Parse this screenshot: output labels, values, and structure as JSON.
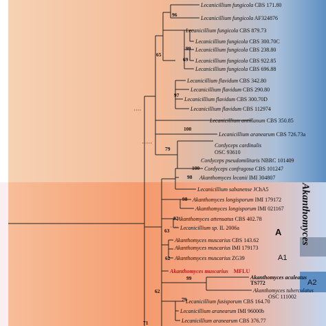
{
  "colors": {
    "left_gradient_start": "#f3c9a6",
    "left_gradient_end": "#f29a72",
    "top_right_band": "#5d8fc4",
    "lower_band_start": "#f6a074",
    "lower_band_end": "#c9d9f1",
    "highlight_red": "#c0161b",
    "line": "#222222"
  },
  "clade": {
    "name": "Akanthomyces",
    "box_a": "A",
    "box_a1": "A1",
    "box_a2": "A2"
  },
  "taxa": [
    {
      "genus": "Lecanicillium fungicola",
      "voucher": "CBS 171.80"
    },
    {
      "genus": "Lecanicillium fungicola",
      "voucher": "AF324876"
    },
    {
      "genus": "Lecanicillium fungicola",
      "voucher": "CBS 879.73"
    },
    {
      "genus": "Lecanicillium fungicola",
      "voucher": "CBS 300.70C"
    },
    {
      "genus": "Lecanicillium fungicola",
      "voucher": "CBS 238.80"
    },
    {
      "genus": "Lecanicillium fungicola",
      "voucher": "CBS 922.85"
    },
    {
      "genus": "Lecanicillium fungicola",
      "voucher": "CBS 696.88"
    },
    {
      "genus": "Lecanicillium flavidum",
      "voucher": "CBS 342.80"
    },
    {
      "genus": "Lecanicillium flavidum",
      "voucher": "CBS 290.80"
    },
    {
      "genus": "Lecanicillium flavidum",
      "voucher": "CBS 300.70D"
    },
    {
      "genus": "Lecanicillium flavidum",
      "voucher": "CBS 112974"
    },
    {
      "genus": "Lecanicillium antillanum",
      "voucher": "CBS 350.85"
    },
    {
      "genus": "Lecanicillium aranearum",
      "voucher": "CBS 726.73a"
    },
    {
      "genus": "Cordyceps cardinalis",
      "voucher": "OSC 93610"
    },
    {
      "genus": "Cordyceps pseudomilitaris",
      "voucher": "NBRC 101409"
    },
    {
      "genus": "Cordyceps confragosa",
      "voucher": "CBS 101247"
    },
    {
      "genus": "Akanthomyces lecanii",
      "voucher": "IMI 304807"
    },
    {
      "genus": "Lecanicillium sabanense",
      "voucher": "JChA5"
    },
    {
      "genus": "Akanthomyces longisporum",
      "voucher": "IMI 179172"
    },
    {
      "genus": "Akanthomyces longisporum",
      "voucher": "IMI 021167"
    },
    {
      "genus": "Akanthomyces attenuatus",
      "voucher": "CBS 402.78"
    },
    {
      "genus": "Lecanicillium sp.",
      "voucher": "IL 2006a"
    },
    {
      "genus": "Akanthomyces muscarius",
      "voucher": "CBS 143.62"
    },
    {
      "genus": "Akanthomyces muscarius",
      "voucher": "IMI 179173"
    },
    {
      "genus": "Akanthomyces muscarius",
      "voucher": "ZG39"
    },
    {
      "genus": "Akanthomyces muscarius",
      "voucher": "MFLU"
    },
    {
      "genus": "Akanthomyces aculeatus",
      "voucher": "TS772"
    },
    {
      "genus": "Akanthomyces tuberculatus",
      "voucher": "OSC 111002"
    },
    {
      "genus": "Lecanicillium fusisporum",
      "voucher": "CBS 164.70"
    },
    {
      "genus": "Lecanicillium aranearum",
      "voucher": "IMI 96000b"
    },
    {
      "genus": "Lecanicillium aranearum",
      "voucher": "CBS 376.77"
    }
  ],
  "support_values": [
    "96",
    "99",
    "69",
    "65",
    "97",
    "100",
    "79",
    "100",
    "98",
    "98",
    "82",
    "63",
    "62",
    "99",
    "62",
    "79",
    "71"
  ]
}
